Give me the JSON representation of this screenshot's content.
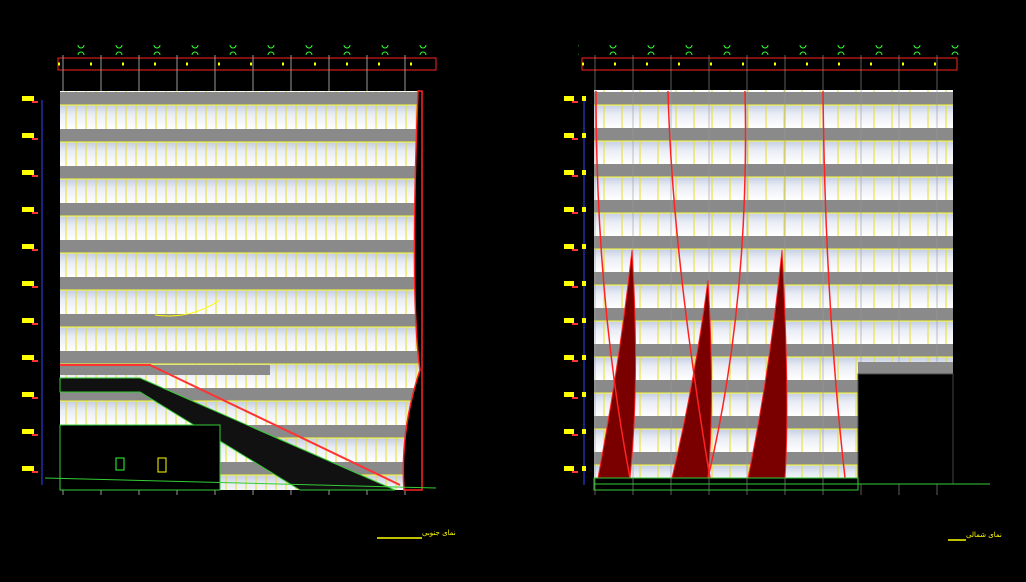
{
  "elevations": [
    {
      "caption": "نمای جنوبی"
    },
    {
      "caption": "نمای شمالی"
    }
  ]
}
